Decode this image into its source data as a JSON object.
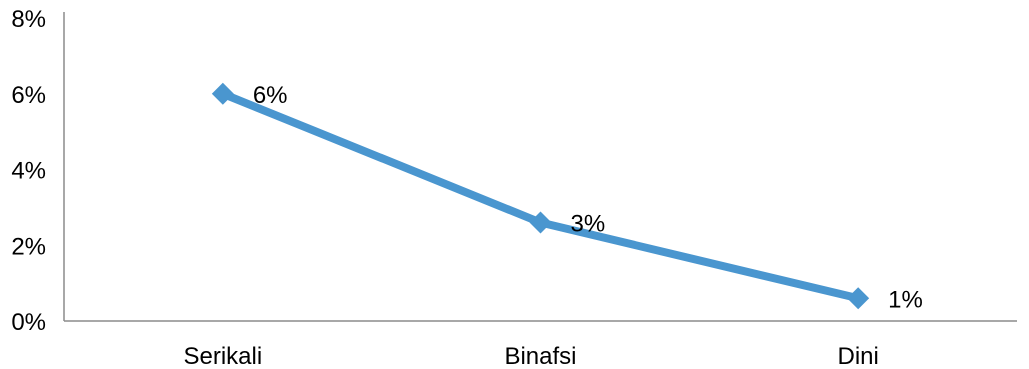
{
  "chart_data": {
    "type": "line",
    "categories": [
      "Serikali",
      "Binafsi",
      "Dini"
    ],
    "series": [
      {
        "values": [
          6,
          2.6,
          0.6
        ],
        "data_labels": [
          "6%",
          "3%",
          "1%"
        ],
        "marker": "diamond"
      }
    ],
    "title": "",
    "xlabel": "",
    "ylabel": "",
    "ylim": [
      0,
      8
    ],
    "y_ticks": [
      0,
      2,
      4,
      6,
      8
    ],
    "y_tick_labels": [
      "0%",
      "2%",
      "4%",
      "6%",
      "8%"
    ],
    "grid": false,
    "legend": "none",
    "colors": {
      "series": "#4a96cf",
      "axis": "#8c8c8c",
      "text": "#000000"
    }
  }
}
